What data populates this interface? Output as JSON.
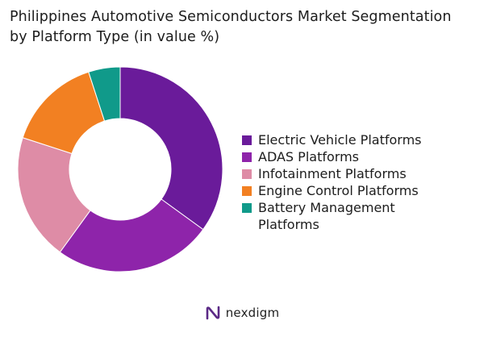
{
  "chart_data": {
    "type": "pie",
    "title_lines": [
      "Philippines Automotive Semiconductors Market Segmentation",
      "by Platform Type (in value %)"
    ],
    "categories": [
      "Electric Vehicle Platforms",
      "ADAS Platforms",
      "Infotainment Platforms",
      "Engine Control Platforms",
      "Battery Management Platforms"
    ],
    "values": [
      35,
      25,
      20,
      15,
      5
    ],
    "colors": [
      "#6a1b9a",
      "#8e24aa",
      "#de8ca6",
      "#f28022",
      "#109a8a"
    ],
    "donut": true,
    "legend_position": "right"
  },
  "brand": {
    "name": "nexdigm",
    "logo_icon": "nexdigm-logo-icon"
  }
}
